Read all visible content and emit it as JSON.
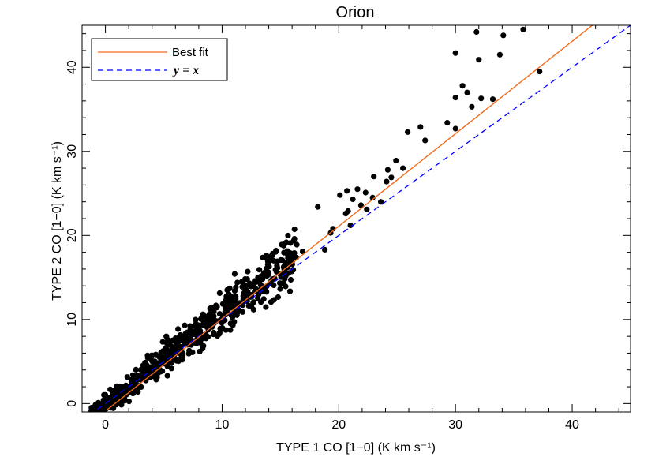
{
  "chart_data": {
    "type": "scatter",
    "title": "Orion",
    "xlabel": "TYPE 1 CO [1−0] (K km s⁻¹)",
    "ylabel": "TYPE 2 CO [1−0] (K km s⁻¹)",
    "xlim": [
      -2,
      45
    ],
    "ylim": [
      -1,
      45
    ],
    "xticks": [
      0,
      10,
      20,
      30,
      40
    ],
    "yticks": [
      0,
      10,
      20,
      30,
      40
    ],
    "grid": false,
    "legend_position": "top-left",
    "colors": {
      "best_fit": "#f26a1b",
      "identity": "#0000ff",
      "points": "#000000"
    },
    "fit": {
      "name": "Best fit",
      "slope": 1.1,
      "intercept": -0.9
    },
    "identity": {
      "name": "y = x"
    },
    "outlier_points": [
      [
        31.8,
        44.2
      ],
      [
        35.8,
        44.5
      ],
      [
        34.1,
        43.8
      ],
      [
        30.0,
        41.7
      ],
      [
        33.8,
        41.5
      ],
      [
        32.0,
        40.9
      ],
      [
        37.2,
        39.5
      ],
      [
        30.6,
        37.8
      ],
      [
        31.0,
        37.0
      ],
      [
        30.0,
        36.4
      ],
      [
        32.2,
        36.3
      ],
      [
        33.2,
        36.2
      ],
      [
        31.4,
        35.3
      ],
      [
        29.3,
        33.4
      ],
      [
        30.0,
        32.7
      ],
      [
        27.0,
        32.9
      ],
      [
        25.9,
        32.3
      ],
      [
        27.4,
        31.3
      ],
      [
        24.9,
        28.9
      ],
      [
        25.5,
        28.0
      ],
      [
        24.2,
        27.8
      ],
      [
        24.5,
        26.9
      ],
      [
        23.0,
        27.0
      ],
      [
        24.1,
        26.4
      ],
      [
        21.6,
        25.5
      ],
      [
        20.7,
        25.3
      ],
      [
        22.3,
        25.1
      ],
      [
        22.9,
        24.5
      ],
      [
        20.1,
        24.8
      ],
      [
        21.2,
        24.3
      ],
      [
        23.6,
        24.0
      ],
      [
        21.9,
        23.6
      ],
      [
        22.4,
        23.1
      ],
      [
        20.8,
        22.9
      ],
      [
        20.6,
        22.6
      ],
      [
        18.2,
        23.4
      ],
      [
        21.0,
        21.2
      ],
      [
        19.5,
        20.8
      ],
      [
        19.3,
        20.3
      ],
      [
        18.8,
        18.3
      ],
      [
        16.2,
        19.6
      ],
      [
        16.4,
        18.9
      ],
      [
        15.1,
        18.9
      ],
      [
        16.9,
        18.1
      ],
      [
        16.0,
        17.4
      ],
      [
        15.6,
        16.2
      ],
      [
        16.1,
        15.9
      ],
      [
        14.7,
        16.4
      ]
    ],
    "dense_cloud": {
      "x_range": [
        -1.2,
        16.5
      ],
      "relation": "y ≈ 1.1x − 0.9",
      "count": 700
    }
  }
}
